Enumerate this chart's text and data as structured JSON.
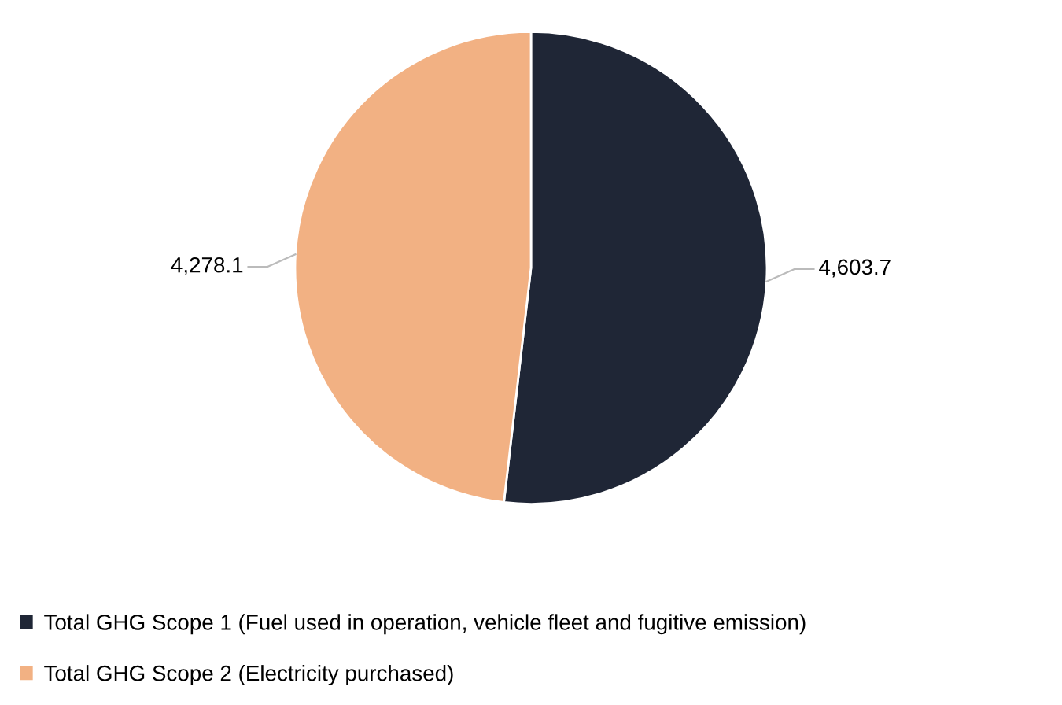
{
  "chart_data": {
    "type": "pie",
    "categories": [
      "Total GHG Scope 1 (Fuel used in operation, vehicle fleet and fugitive emission)",
      "Total GHG Scope 2 (Electricity purchased)"
    ],
    "values": [
      4603.7,
      4278.1
    ],
    "value_labels": [
      "4,603.7",
      "4,278.1"
    ],
    "colors": [
      "#1f2636",
      "#f2b183"
    ],
    "legend": "bottom"
  }
}
